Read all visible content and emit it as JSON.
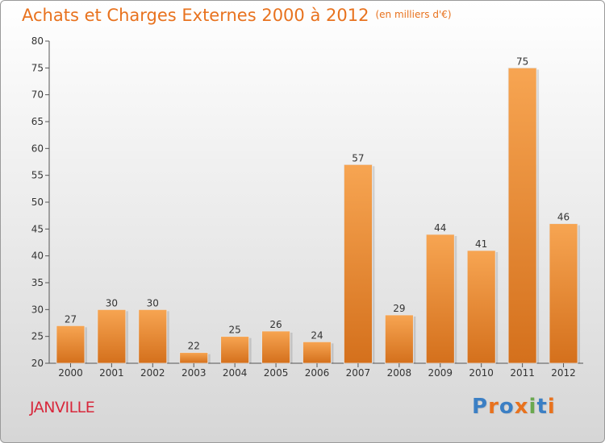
{
  "header": {
    "title": "Achats et Charges Externes 2000 à 2012",
    "subtitle": "(en milliers d'€)"
  },
  "footer": {
    "town": "JANVILLE",
    "logo": "Proxiti"
  },
  "colors": {
    "title": "#e8721e",
    "town": "#d8283c",
    "bar_top": "#f7a552",
    "bar_bottom": "#d4701c",
    "logo_letters": [
      "#3b7fc4",
      "#e8721e",
      "#3b7fc4",
      "#e8721e",
      "#6aa84f",
      "#3b7fc4",
      "#e8721e"
    ]
  },
  "chart_data": {
    "type": "bar",
    "categories": [
      "2000",
      "2001",
      "2002",
      "2003",
      "2004",
      "2005",
      "2006",
      "2007",
      "2008",
      "2009",
      "2010",
      "2011",
      "2012"
    ],
    "values": [
      27,
      30,
      30,
      22,
      25,
      26,
      24,
      57,
      29,
      44,
      41,
      75,
      46
    ],
    "ylim": [
      20,
      80
    ],
    "yticks": [
      20,
      25,
      30,
      35,
      40,
      45,
      50,
      55,
      60,
      65,
      70,
      75,
      80
    ],
    "grid": false,
    "show_data_labels": true
  }
}
